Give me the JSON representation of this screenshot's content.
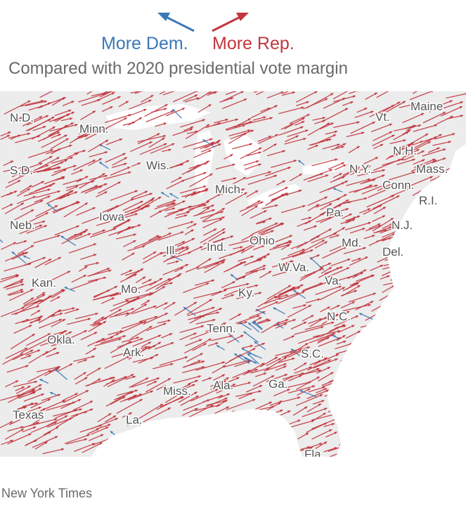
{
  "legend": {
    "dem": {
      "label": "More Dem.",
      "color": "#3a78b8",
      "icon": "arrow-up-left-icon"
    },
    "rep": {
      "label": "More Rep.",
      "color": "#c2363f",
      "icon": "arrow-up-right-icon"
    }
  },
  "subtitle": "Compared with 2020 presidential vote margin",
  "source": "New York Times",
  "map": {
    "land_color": "#ececec",
    "water_color": "#ffffff",
    "arrow_rep_color": "#c2363f",
    "arrow_dem_color": "#3a78b8",
    "state_labels": [
      "N.D.",
      "Minn.",
      "S.D.",
      "Wis.",
      "Mich.",
      "Neb.",
      "Iowa",
      "Ill.",
      "Ind.",
      "Ohio",
      "Kan.",
      "Mo.",
      "Ky.",
      "W.Va.",
      "Va.",
      "Tenn.",
      "Okla.",
      "Ark.",
      "N.C.",
      "S.C.",
      "Miss.",
      "Ala.",
      "Ga.",
      "Texas",
      "La.",
      "Fla.",
      "Pa.",
      "Md.",
      "Del.",
      "N.J.",
      "N.Y.",
      "Conn.",
      "R.I.",
      "Mass.",
      "N.H.",
      "Vt.",
      "Maine"
    ]
  }
}
